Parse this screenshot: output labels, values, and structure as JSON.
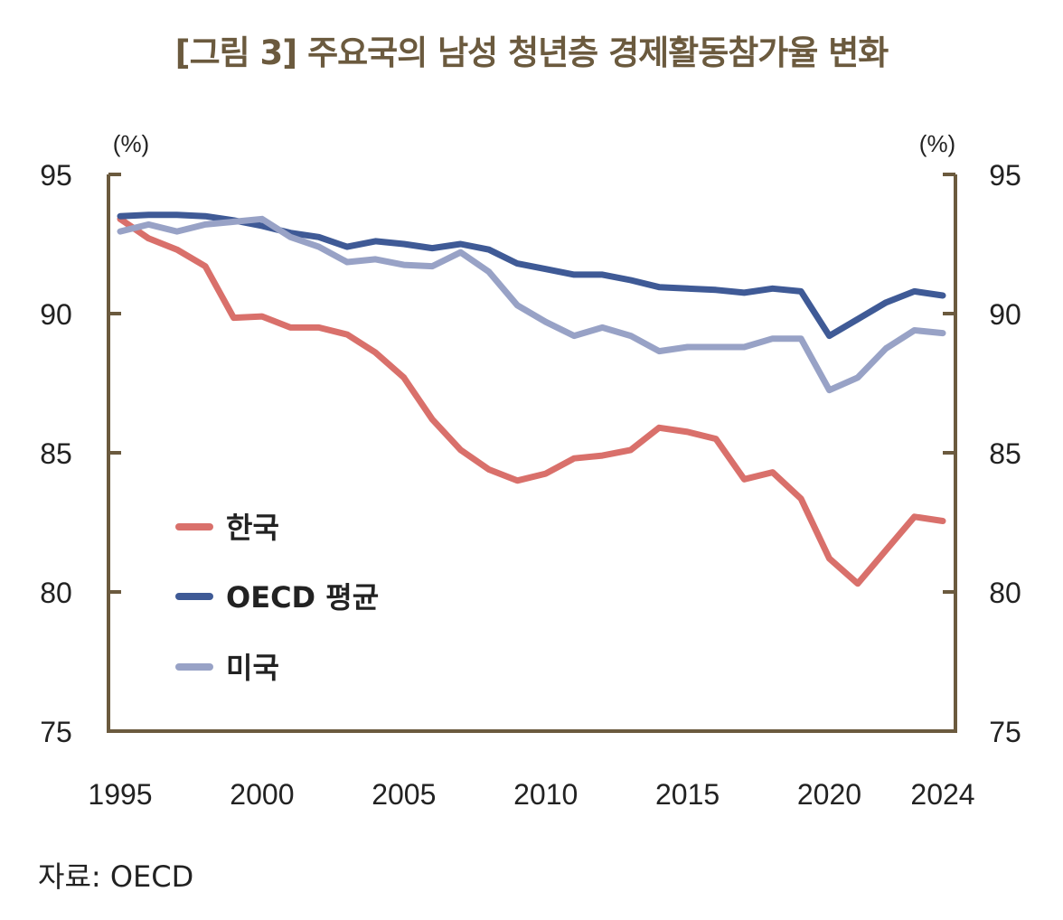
{
  "chart_data": {
    "type": "line",
    "title": "[그림 3] 주요국의 남성 청년층 경제활동참가율 변화",
    "ylabel_left": "(%)",
    "ylabel_right": "(%)",
    "ylim": [
      75,
      95
    ],
    "yticks": [
      95,
      90,
      85,
      80,
      75
    ],
    "xlim": [
      1995,
      2024
    ],
    "xticks": [
      1995,
      2000,
      2005,
      2010,
      2015,
      2020,
      2024
    ],
    "grid": false,
    "legend_position": "bottom-left",
    "x": [
      1995,
      1996,
      1997,
      1998,
      1999,
      2000,
      2001,
      2002,
      2003,
      2004,
      2005,
      2006,
      2007,
      2008,
      2009,
      2010,
      2011,
      2012,
      2013,
      2014,
      2015,
      2016,
      2017,
      2018,
      2019,
      2020,
      2021,
      2022,
      2023,
      2024
    ],
    "series": [
      {
        "name": "한국",
        "color": "#d9706b",
        "values": [
          93.4,
          92.7,
          92.3,
          91.7,
          89.85,
          89.9,
          89.5,
          89.5,
          89.25,
          88.6,
          87.7,
          86.2,
          85.1,
          84.4,
          84.0,
          84.25,
          84.8,
          84.9,
          85.1,
          85.9,
          85.75,
          85.5,
          84.05,
          84.3,
          83.35,
          81.2,
          80.3,
          81.5,
          82.7,
          82.55
        ]
      },
      {
        "name": "OECD 평균",
        "color": "#3f5a96",
        "values": [
          93.5,
          93.55,
          93.55,
          93.5,
          93.35,
          93.15,
          92.9,
          92.75,
          92.4,
          92.6,
          92.5,
          92.35,
          92.5,
          92.3,
          91.8,
          91.6,
          91.4,
          91.4,
          91.2,
          90.95,
          90.9,
          90.85,
          90.75,
          90.9,
          90.8,
          89.2,
          89.8,
          90.4,
          90.8,
          90.65
        ]
      },
      {
        "name": "미국",
        "color": "#98a2c6",
        "values": [
          92.95,
          93.2,
          92.95,
          93.2,
          93.3,
          93.4,
          92.75,
          92.4,
          91.85,
          91.95,
          91.75,
          91.7,
          92.2,
          91.5,
          90.3,
          89.7,
          89.2,
          89.5,
          89.2,
          88.65,
          88.8,
          88.8,
          88.8,
          89.1,
          89.1,
          87.25,
          87.7,
          88.75,
          89.4,
          89.3
        ]
      }
    ],
    "source": "자료: OECD"
  },
  "axis_color": "#6b5a3e"
}
